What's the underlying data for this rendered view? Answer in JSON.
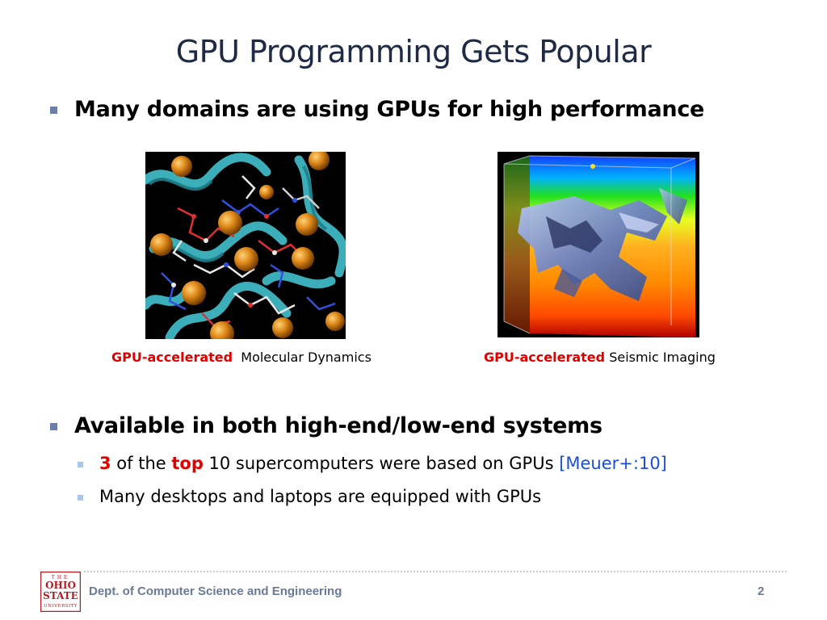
{
  "slide": {
    "title": "GPU Programming Gets Popular",
    "bullet1": "Many domains are using GPUs for high performance",
    "bullet2": "Available in both high-end/low-end systems",
    "sub1": {
      "num": "3",
      "of_the": " of the ",
      "top": "top",
      "rest": " 10 supercomputers were based on GPUs ",
      "cite": "[Meuer+:10]"
    },
    "sub2": "Many desktops and laptops are equipped with GPUs"
  },
  "images": {
    "left": {
      "caption_red": "GPU-accelerated",
      "caption_rest": "Molecular Dynamics"
    },
    "right": {
      "caption_red": "GPU-accelerated",
      "caption_rest": "Seismic Imaging"
    }
  },
  "footer": {
    "dept": "Dept. of Computer Science and Engineering",
    "page": "2",
    "logo_text": [
      "THE",
      "OHIO",
      "STATE",
      "UNIVERSITY"
    ]
  },
  "colors": {
    "accent_red": "#e00000",
    "citation_blue": "#1a4fd6",
    "bullet_primary": "#6b7fa8",
    "bullet_secondary": "#a8c8e8",
    "footer_text": "#6a7a9a",
    "logo_red": "#b01e23"
  }
}
